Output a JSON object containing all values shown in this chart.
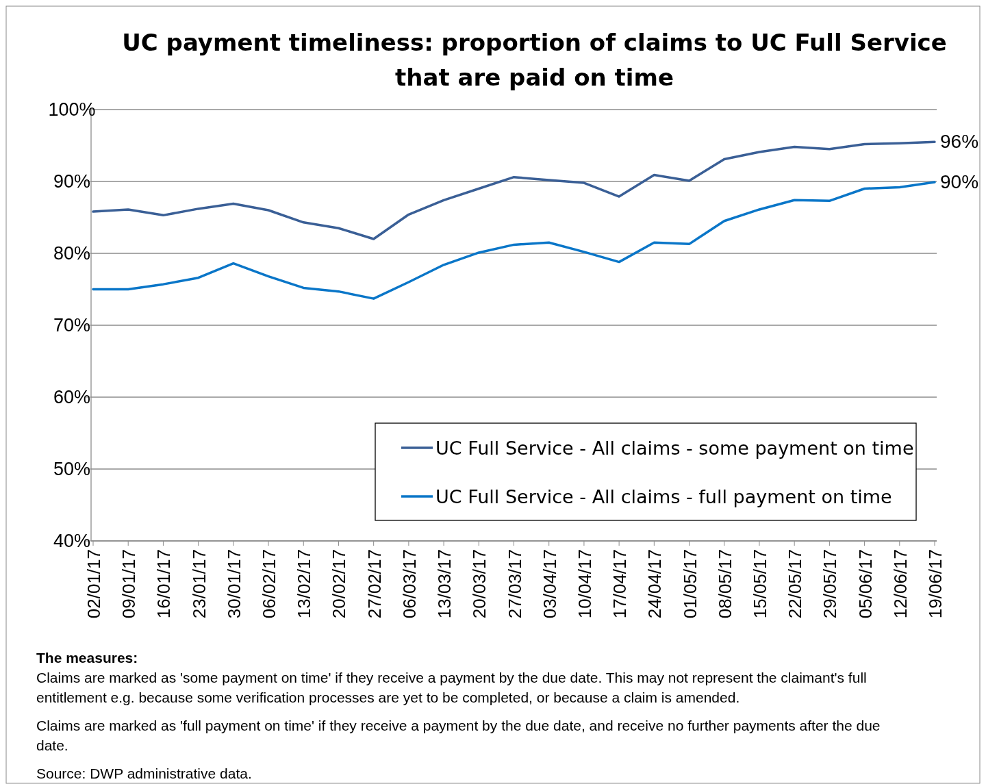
{
  "chart_data": {
    "type": "line",
    "title": "UC payment timeliness: proportion of claims to UC Full Service that are paid on time",
    "categories": [
      "02/01/17",
      "09/01/17",
      "16/01/17",
      "23/01/17",
      "30/01/17",
      "06/02/17",
      "13/02/17",
      "20/02/17",
      "27/02/17",
      "06/03/17",
      "13/03/17",
      "20/03/17",
      "27/03/17",
      "03/04/17",
      "10/04/17",
      "17/04/17",
      "24/04/17",
      "01/05/17",
      "08/05/17",
      "15/05/17",
      "22/05/17",
      "29/05/17",
      "05/06/17",
      "12/06/17",
      "19/06/17"
    ],
    "series": [
      {
        "name": "UC Full Service - All claims - some payment on time",
        "color": "#3a5f96",
        "values": [
          85.8,
          86.1,
          85.3,
          86.2,
          86.9,
          86.0,
          84.3,
          83.5,
          82.0,
          85.4,
          87.4,
          89.0,
          90.6,
          90.2,
          89.8,
          87.9,
          90.9,
          90.1,
          93.1,
          94.1,
          94.8,
          94.5,
          95.2,
          95.3,
          95.5
        ],
        "value_labels": [
          null,
          null,
          null,
          null,
          null,
          null,
          null,
          null,
          null,
          null,
          null,
          null,
          null,
          null,
          null,
          null,
          null,
          null,
          null,
          null,
          null,
          null,
          null,
          null,
          "96%"
        ]
      },
      {
        "name": "UC Full Service - All claims - full payment on time",
        "color": "#0a76c8",
        "values": [
          75.0,
          75.0,
          75.7,
          76.6,
          78.6,
          76.8,
          75.2,
          74.7,
          73.7,
          76.0,
          78.4,
          80.1,
          81.2,
          81.5,
          80.2,
          78.8,
          81.5,
          81.3,
          84.5,
          86.1,
          87.4,
          87.3,
          89.0,
          89.2,
          89.9
        ],
        "value_labels": [
          null,
          null,
          null,
          null,
          null,
          null,
          null,
          null,
          null,
          null,
          null,
          null,
          null,
          null,
          null,
          null,
          null,
          null,
          null,
          null,
          null,
          null,
          null,
          null,
          "90%"
        ]
      }
    ],
    "ylim": [
      40,
      100
    ],
    "yticks": [
      {
        "value": 40,
        "label": "40%"
      },
      {
        "value": 50,
        "label": "50%"
      },
      {
        "value": 60,
        "label": "60%"
      },
      {
        "value": 70,
        "label": "70%"
      },
      {
        "value": 80,
        "label": "80%"
      },
      {
        "value": 90,
        "label": "90%"
      },
      {
        "value": 100,
        "label": "100%"
      }
    ],
    "grid": "y",
    "legend": "bottom right",
    "marker": "none",
    "line_style": "solid",
    "annotations": [
      "The measures:",
      "Claims are marked as 'some payment on time' if  they receive a payment by the due date. This may not represent the claimant's full entitlement e.g. because some verification processes are yet to be completed, or because a claim is amended.",
      "Claims are marked as 'full payment on time' if they receive a payment by the due date, and receive no further payments after the due date.",
      "Source: DWP administrative data."
    ]
  }
}
